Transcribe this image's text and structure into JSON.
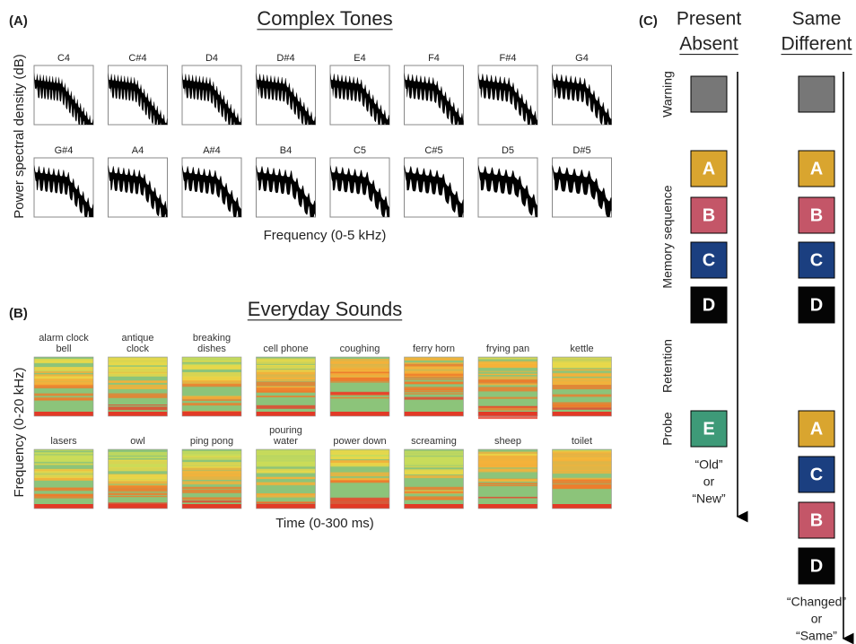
{
  "panel_a": {
    "label": "(A)",
    "title": "Complex Tones",
    "y_label": "Power spectral density (dB)",
    "x_label": "Frequency (0-5 kHz)",
    "notes": [
      "C4",
      "C#4",
      "D4",
      "D#4",
      "E4",
      "F4",
      "F#4",
      "G4",
      "G#4",
      "A4",
      "A#4",
      "B4",
      "C5",
      "C#5",
      "D5",
      "D#5"
    ]
  },
  "panel_b": {
    "label": "(B)",
    "title": "Everyday Sounds",
    "y_label": "Frequency (0-20 kHz)",
    "x_label": "Time (0-300 ms)",
    "sounds": [
      "alarm clock bell",
      "antique clock",
      "breaking dishes",
      "cell phone",
      "coughing",
      "ferry horn",
      "frying pan",
      "kettle",
      "lasers",
      "owl",
      "ping pong",
      "pouring water",
      "power down",
      "screaming",
      "sheep",
      "toilet"
    ]
  },
  "panel_c": {
    "label": "(C)",
    "columns": [
      {
        "title": "Present",
        "subtitle": "Absent",
        "memory": [
          "A",
          "B",
          "C",
          "D"
        ],
        "probe": [
          "E"
        ],
        "response": [
          "“Old”",
          "or",
          "“New”"
        ]
      },
      {
        "title": "Same",
        "subtitle": "Different",
        "memory": [
          "A",
          "B",
          "C",
          "D"
        ],
        "probe": [
          "A",
          "C",
          "B",
          "D"
        ],
        "response": [
          "“Changed”",
          "or",
          "“Same”"
        ]
      }
    ],
    "rows": [
      "Warning",
      "Memory sequence",
      "Retention",
      "Probe"
    ]
  }
}
